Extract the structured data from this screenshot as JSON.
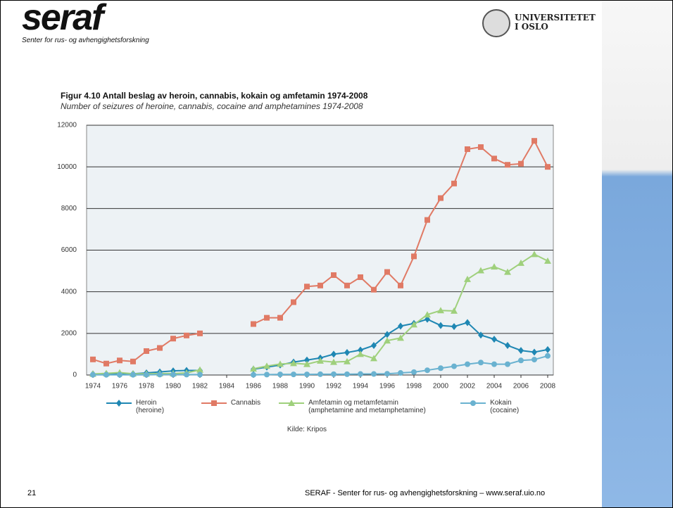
{
  "header": {
    "logo": "seraf",
    "logo_subtitle": "Senter for rus- og avhengighetsforskning",
    "university": [
      "UNIVERSITETET",
      "I OSLO"
    ]
  },
  "chart_data": {
    "type": "line",
    "title": "Figur 4.10 Antall beslag av heroin, cannabis, kokain og amfetamin 1974-2008",
    "subtitle": "Number of seizures of heroine, cannabis, cocaine and amphetamines 1974-2008",
    "x": [
      1974,
      1975,
      1976,
      1977,
      1978,
      1979,
      1980,
      1981,
      1982,
      1983,
      1984,
      1985,
      1986,
      1987,
      1988,
      1989,
      1990,
      1991,
      1992,
      1993,
      1994,
      1995,
      1996,
      1997,
      1998,
      1999,
      2000,
      2001,
      2002,
      2003,
      2004,
      2005,
      2006,
      2007,
      2008
    ],
    "series": [
      {
        "name": "Heroin (heroine)",
        "color": "#1f87b3",
        "marker": "diamond",
        "values": [
          50,
          60,
          70,
          60,
          100,
          150,
          200,
          220,
          220,
          null,
          null,
          null,
          280,
          380,
          480,
          620,
          720,
          820,
          1000,
          1080,
          1200,
          1420,
          1950,
          2350,
          2480,
          2680,
          2380,
          2330,
          2520,
          1920,
          1720,
          1420,
          1180,
          1100,
          1220
        ]
      },
      {
        "name": "Cannabis",
        "color": "#e07a65",
        "marker": "square",
        "values": [
          750,
          550,
          700,
          650,
          1150,
          1300,
          1750,
          1900,
          2000,
          null,
          null,
          null,
          2450,
          2750,
          2750,
          3500,
          4250,
          4300,
          4800,
          4300,
          4700,
          4100,
          4950,
          4300,
          5700,
          7450,
          8500,
          9200,
          10850,
          10950,
          10400,
          10100,
          10150,
          11250,
          10000
        ]
      },
      {
        "name": "Amfetamin og metamfetamin (amphetamine and metamphetamine)",
        "color": "#9fd07c",
        "marker": "triangle",
        "values": [
          50,
          80,
          120,
          60,
          60,
          70,
          70,
          100,
          250,
          null,
          null,
          null,
          300,
          430,
          530,
          560,
          520,
          680,
          620,
          650,
          1000,
          800,
          1650,
          1780,
          2420,
          2900,
          3100,
          3080,
          4600,
          5020,
          5200,
          4950,
          5380,
          5800,
          5480
        ]
      },
      {
        "name": "Kokain (cocaine)",
        "color": "#6ab2d0",
        "marker": "circle",
        "values": [
          10,
          10,
          10,
          10,
          10,
          20,
          20,
          20,
          20,
          null,
          null,
          null,
          10,
          20,
          30,
          30,
          30,
          40,
          40,
          40,
          50,
          50,
          60,
          100,
          140,
          230,
          330,
          420,
          520,
          600,
          520,
          520,
          700,
          740,
          920
        ]
      }
    ],
    "xlim": [
      1974,
      2008
    ],
    "ylim": [
      0,
      12000
    ],
    "xticks": [
      1974,
      1976,
      1978,
      1980,
      1982,
      1984,
      1986,
      1988,
      1990,
      1992,
      1994,
      1996,
      1998,
      2000,
      2002,
      2004,
      2006,
      2008
    ],
    "yticks": [
      0,
      2000,
      4000,
      6000,
      8000,
      10000,
      12000
    ],
    "grid": true,
    "source": "Kilde: Kripos"
  },
  "footer": {
    "page_number": "21",
    "text": "SERAF - Senter for rus- og avhengighetsforskning – www.seraf.uio.no"
  }
}
